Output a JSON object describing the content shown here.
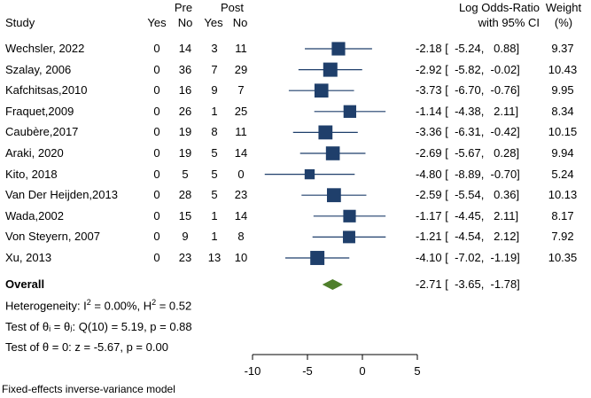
{
  "chart_data": {
    "type": "forest",
    "header": {
      "study": "Study",
      "pre": "Pre",
      "post": "Post",
      "yes": "Yes",
      "no": "No",
      "effect_line1": "Log Odds-Ratio",
      "effect_line2": "with 95% CI",
      "weight_line1": "Weight",
      "weight_line2": "(%)"
    },
    "studies": [
      {
        "name": "Wechsler, 2022",
        "pre_yes": "0",
        "pre_no": "14",
        "post_yes": "3",
        "post_no": "11",
        "lor": -2.18,
        "lo": -5.24,
        "hi": 0.88,
        "effect_text": "-2.18 [  -5.24,   0.88]",
        "weight": 9.37,
        "weight_text": "9.37"
      },
      {
        "name": "Szalay, 2006",
        "pre_yes": "0",
        "pre_no": "36",
        "post_yes": "7",
        "post_no": "29",
        "lor": -2.92,
        "lo": -5.82,
        "hi": -0.02,
        "effect_text": "-2.92 [  -5.82,  -0.02]",
        "weight": 10.43,
        "weight_text": "10.43"
      },
      {
        "name": "Kafchitsas,2010",
        "pre_yes": "0",
        "pre_no": "16",
        "post_yes": "9",
        "post_no": "7",
        "lor": -3.73,
        "lo": -6.7,
        "hi": -0.76,
        "effect_text": "-3.73 [  -6.70,  -0.76]",
        "weight": 9.95,
        "weight_text": "9.95"
      },
      {
        "name": "Fraquet,2009",
        "pre_yes": "0",
        "pre_no": "26",
        "post_yes": "1",
        "post_no": "25",
        "lor": -1.14,
        "lo": -4.38,
        "hi": 2.11,
        "effect_text": "-1.14 [  -4.38,   2.11]",
        "weight": 8.34,
        "weight_text": "8.34"
      },
      {
        "name": "Caubère,2017",
        "pre_yes": "0",
        "pre_no": "19",
        "post_yes": "8",
        "post_no": "11",
        "lor": -3.36,
        "lo": -6.31,
        "hi": -0.42,
        "effect_text": "-3.36 [  -6.31,  -0.42]",
        "weight": 10.15,
        "weight_text": "10.15"
      },
      {
        "name": "Araki, 2020",
        "pre_yes": "0",
        "pre_no": "19",
        "post_yes": "5",
        "post_no": "14",
        "lor": -2.69,
        "lo": -5.67,
        "hi": 0.28,
        "effect_text": "-2.69 [  -5.67,   0.28]",
        "weight": 9.94,
        "weight_text": "9.94"
      },
      {
        "name": "Kito, 2018",
        "pre_yes": "0",
        "pre_no": "5",
        "post_yes": "5",
        "post_no": "0",
        "lor": -4.8,
        "lo": -8.89,
        "hi": -0.7,
        "effect_text": "-4.80 [  -8.89,  -0.70]",
        "weight": 5.24,
        "weight_text": "5.24"
      },
      {
        "name": "Van Der Heijden,2013",
        "pre_yes": "0",
        "pre_no": "28",
        "post_yes": "5",
        "post_no": "23",
        "lor": -2.59,
        "lo": -5.54,
        "hi": 0.36,
        "effect_text": "-2.59 [  -5.54,   0.36]",
        "weight": 10.13,
        "weight_text": "10.13"
      },
      {
        "name": "Wada,2002",
        "pre_yes": "0",
        "pre_no": "15",
        "post_yes": "1",
        "post_no": "14",
        "lor": -1.17,
        "lo": -4.45,
        "hi": 2.11,
        "effect_text": "-1.17 [  -4.45,   2.11]",
        "weight": 8.17,
        "weight_text": "8.17"
      },
      {
        "name": "Von Steyern, 2007",
        "pre_yes": "0",
        "pre_no": "9",
        "post_yes": "1",
        "post_no": "8",
        "lor": -1.21,
        "lo": -4.54,
        "hi": 2.12,
        "effect_text": "-1.21 [  -4.54,   2.12]",
        "weight": 7.92,
        "weight_text": "7.92"
      },
      {
        "name": "Xu, 2013",
        "pre_yes": "0",
        "pre_no": "23",
        "post_yes": "13",
        "post_no": "10",
        "lor": -4.1,
        "lo": -7.02,
        "hi": -1.19,
        "effect_text": "-4.10 [  -7.02,  -1.19]",
        "weight": 10.35,
        "weight_text": "10.35"
      }
    ],
    "overall": {
      "label": "Overall",
      "lor": -2.71,
      "lo": -3.65,
      "hi": -1.78,
      "effect_text": "-2.71 [  -3.65,  -1.78]"
    },
    "stats": {
      "heterogeneity_prefix": "Heterogeneity: I",
      "heterogeneity_sup": "2",
      "heterogeneity_rest": " = 0.00%, H",
      "heterogeneity_sup2": "2",
      "heterogeneity_end": " = 0.52",
      "test_theta_i": "Test of θᵢ = θⱼ: Q(10) = 5.19, p = 0.88",
      "test_theta_0": "Test of θ = 0: z = -5.67, p = 0.00"
    },
    "xaxis": {
      "ticks": [
        -10,
        -5,
        0,
        5
      ],
      "tick_labels": [
        "-10",
        "-5",
        "0",
        "5"
      ],
      "xlim": [
        -10,
        5
      ]
    },
    "footnote": "Fixed-effects inverse-variance model",
    "colors": {
      "marker": "#1f3f6b",
      "ci_line": "#1f3f6b",
      "overall_diamond": "#4f7f2b"
    }
  }
}
